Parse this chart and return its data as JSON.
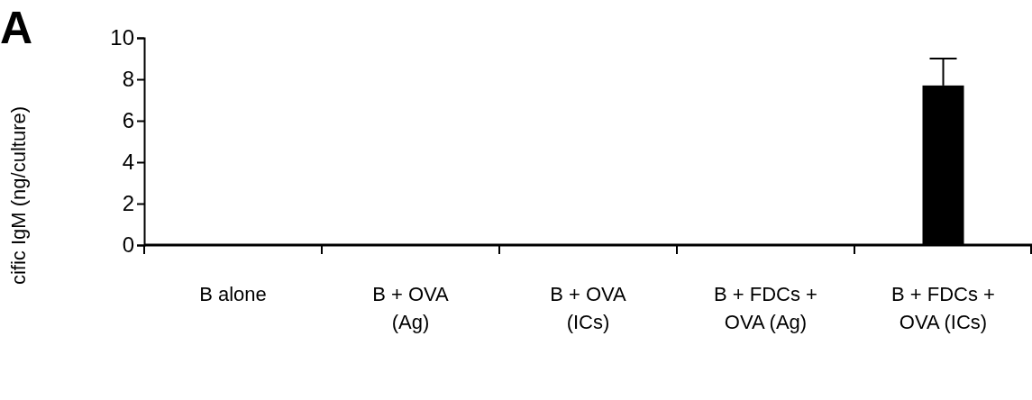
{
  "chart_data": {
    "type": "bar",
    "ylabel": "cific IgM (ng/culture)",
    "annotations": [
      "A"
    ],
    "categories": [
      "B alone",
      "B + OVA\n(Ag)",
      "B + OVA\n(ICs)",
      "B + FDCs +\nOVA (Ag)",
      "B + FDCs +\nOVA (ICs)"
    ],
    "values": [
      0,
      0,
      0,
      0,
      7.7
    ],
    "color": "#000000",
    "errors": [
      null,
      null,
      null,
      null,
      [
        7.7,
        9.0
      ]
    ],
    "ylim": [
      0,
      10
    ],
    "yticks": [
      0,
      2,
      4,
      6,
      8,
      10
    ],
    "grid": false
  }
}
